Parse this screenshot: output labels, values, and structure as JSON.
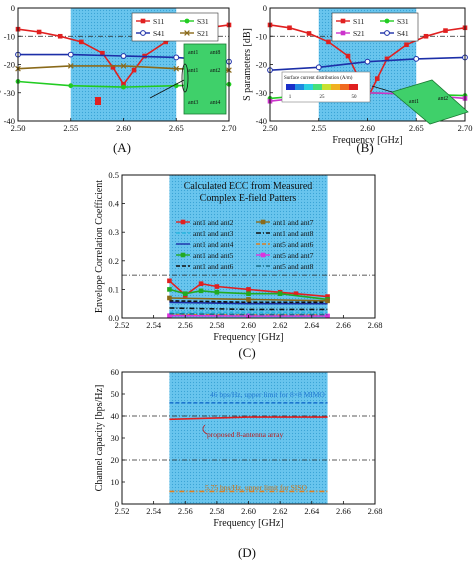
{
  "chart_data": [
    {
      "panel": "A",
      "type": "line",
      "ylabel": "S parameters [dB]",
      "xlim": [
        2.5,
        2.7
      ],
      "ylim": [
        -40,
        0
      ],
      "xticks": [
        "2.50",
        "2.55",
        "2.60",
        "2.65",
        "2.70"
      ],
      "yticks": [
        "0",
        "-10",
        "-20",
        "-30",
        "-40"
      ],
      "highlight_band": [
        2.55,
        2.65
      ],
      "reference_line": -10,
      "series": [
        {
          "name": "S11",
          "color": "#e02020",
          "marker": "square",
          "x": [
            2.5,
            2.52,
            2.54,
            2.56,
            2.58,
            2.59,
            2.6,
            2.61,
            2.62,
            2.64,
            2.66,
            2.68,
            2.7
          ],
          "values": [
            -7.5,
            -8.5,
            -10,
            -12,
            -16,
            -21,
            -27,
            -22,
            -17,
            -12,
            -9,
            -7,
            -6
          ]
        },
        {
          "name": "S31",
          "color": "#22cc22",
          "marker": "circle",
          "x": [
            2.5,
            2.55,
            2.6,
            2.65,
            2.7
          ],
          "values": [
            -26,
            -27.5,
            -28,
            -27.5,
            -27
          ]
        },
        {
          "name": "S41",
          "color": "#1c2fa8",
          "marker": "circle-open",
          "x": [
            2.5,
            2.55,
            2.6,
            2.65,
            2.7
          ],
          "values": [
            -16.5,
            -16.5,
            -17,
            -17.5,
            -19
          ]
        },
        {
          "name": "S21",
          "color": "#8a6a1a",
          "marker": "x",
          "x": [
            2.5,
            2.55,
            2.6,
            2.65,
            2.7
          ],
          "values": [
            -21.5,
            -20.5,
            -20.5,
            -21.5,
            -22
          ]
        }
      ],
      "inset_labels": [
        "ant1",
        "ant2",
        "ant3",
        "ant4",
        "ant1",
        "ant8"
      ]
    },
    {
      "panel": "B",
      "type": "line",
      "xlabel": "Frequency [GHz]",
      "ylabel": "S parameters [dB]",
      "xlim": [
        2.5,
        2.7
      ],
      "ylim": [
        -40,
        0
      ],
      "xticks": [
        "2.50",
        "2.55",
        "2.60",
        "2.65",
        "2.70"
      ],
      "yticks": [
        "0",
        "-10",
        "-20",
        "-30",
        "-40"
      ],
      "highlight_band": [
        2.55,
        2.65
      ],
      "reference_line": -10,
      "series": [
        {
          "name": "S11",
          "color": "#e02020",
          "marker": "square",
          "x": [
            2.5,
            2.52,
            2.54,
            2.56,
            2.58,
            2.59,
            2.6,
            2.61,
            2.62,
            2.64,
            2.66,
            2.68,
            2.7
          ],
          "values": [
            -6,
            -7,
            -9,
            -12,
            -17,
            -24,
            -32,
            -25,
            -18,
            -13,
            -10,
            -8,
            -7
          ]
        },
        {
          "name": "S31",
          "color": "#22cc22",
          "marker": "circle",
          "x": [
            2.5,
            2.55,
            2.6,
            2.65,
            2.7
          ],
          "values": [
            -32,
            -30.5,
            -30,
            -30.5,
            -31
          ]
        },
        {
          "name": "S21",
          "color": "#cc33cc",
          "marker": "square",
          "x": [
            2.5,
            2.55,
            2.6,
            2.65,
            2.7
          ],
          "values": [
            -33,
            -31,
            -30,
            -30.5,
            -32
          ]
        },
        {
          "name": "S41",
          "color": "#1c2fa8",
          "marker": "circle-open",
          "x": [
            2.5,
            2.55,
            2.6,
            2.65,
            2.7
          ],
          "values": [
            -22,
            -21,
            -19,
            -18,
            -17.5
          ]
        }
      ],
      "inset": {
        "title": "Surface current distribution (A/m)",
        "scale": [
          "1",
          "25",
          "50"
        ],
        "labels": [
          "ant1",
          "ant2"
        ]
      }
    },
    {
      "panel": "C",
      "type": "line",
      "xlabel": "Frequency [GHz]",
      "ylabel": "Envelope Correlation Coefficient",
      "title": [
        "Calculated ECC from Measured",
        "Complex E-field Patters"
      ],
      "xlim": [
        2.52,
        2.68
      ],
      "ylim": [
        0,
        0.5
      ],
      "xticks": [
        "2.52",
        "2.54",
        "2.56",
        "2.58",
        "2.60",
        "2.62",
        "2.64",
        "2.66",
        "2.68"
      ],
      "yticks": [
        "0.5",
        "0.4",
        "0.3",
        "0.2",
        "0.1",
        "0.0"
      ],
      "highlight_band": [
        2.55,
        2.65
      ],
      "reference_line": 0.15,
      "series": [
        {
          "name": "ant1 and ant2",
          "color": "#e02020",
          "style": "solid-marker",
          "x": [
            2.55,
            2.56,
            2.57,
            2.58,
            2.6,
            2.62,
            2.63,
            2.65
          ],
          "values": [
            0.13,
            0.08,
            0.12,
            0.11,
            0.1,
            0.09,
            0.085,
            0.075
          ]
        },
        {
          "name": "ant1 and ant3",
          "color": "#29b6e0",
          "style": "dash",
          "x": [
            2.55,
            2.6,
            2.65
          ],
          "values": [
            0.02,
            0.02,
            0.02
          ]
        },
        {
          "name": "ant1 and ant4",
          "color": "#1c2fa8",
          "style": "solid",
          "x": [
            2.55,
            2.6,
            2.65
          ],
          "values": [
            0.055,
            0.05,
            0.05
          ]
        },
        {
          "name": "ant1 and ant5",
          "color": "#22aa22",
          "style": "solid-marker",
          "x": [
            2.55,
            2.56,
            2.57,
            2.58,
            2.6,
            2.62,
            2.65
          ],
          "values": [
            0.1,
            0.085,
            0.095,
            0.09,
            0.085,
            0.085,
            0.065
          ]
        },
        {
          "name": "ant1 and ant6",
          "color": "#111111",
          "style": "dash",
          "x": [
            2.55,
            2.6,
            2.65
          ],
          "values": [
            0.06,
            0.055,
            0.055
          ]
        },
        {
          "name": "ant1 and ant7",
          "color": "#8a6a1a",
          "style": "solid-marker",
          "x": [
            2.55,
            2.6,
            2.65
          ],
          "values": [
            0.07,
            0.065,
            0.06
          ]
        },
        {
          "name": "ant1 and ant8",
          "color": "#111111",
          "style": "dashdot",
          "x": [
            2.55,
            2.6,
            2.65
          ],
          "values": [
            0.035,
            0.03,
            0.03
          ]
        },
        {
          "name": "ant5 and ant6",
          "color": "#e08020",
          "style": "dash",
          "x": [
            2.55,
            2.6,
            2.65
          ],
          "values": [
            0.012,
            0.01,
            0.01
          ]
        },
        {
          "name": "ant5 and ant7",
          "color": "#dd33dd",
          "style": "solid-marker",
          "x": [
            2.55,
            2.6,
            2.65
          ],
          "values": [
            0.008,
            0.007,
            0.007
          ]
        },
        {
          "name": "ant5 and ant8",
          "color": "#1c6f8a",
          "style": "dashdot",
          "x": [
            2.55,
            2.6,
            2.65
          ],
          "values": [
            0.015,
            0.012,
            0.012
          ]
        }
      ]
    },
    {
      "panel": "D",
      "type": "line",
      "xlabel": "Frequency [GHz]",
      "ylabel": "Channel capacity [bps/Hz]",
      "xlim": [
        2.52,
        2.68
      ],
      "ylim": [
        0,
        60
      ],
      "xticks": [
        "2.52",
        "2.54",
        "2.56",
        "2.58",
        "2.60",
        "2.62",
        "2.64",
        "2.66",
        "2.68"
      ],
      "yticks": [
        "60",
        "50",
        "40",
        "30",
        "20",
        "10",
        "0"
      ],
      "highlight_band": [
        2.55,
        2.65
      ],
      "reference_lines": [
        40,
        20
      ],
      "series": [
        {
          "name": "46 bps/Hz, upper limit for 8×8 MIMO",
          "color": "#1f77d0",
          "style": "dash",
          "x": [
            2.55,
            2.65
          ],
          "values": [
            46,
            46
          ]
        },
        {
          "name": "proposed 8-antenna array",
          "color": "#e02020",
          "style": "solid",
          "x": [
            2.55,
            2.6,
            2.65
          ],
          "values": [
            38.5,
            39.5,
            39.5
          ]
        },
        {
          "name": "5.75 bps/Hz, upper limit for SISO",
          "color": "#e08020",
          "style": "dashdot",
          "x": [
            2.55,
            2.65
          ],
          "values": [
            5.75,
            5.75
          ]
        }
      ]
    }
  ],
  "panel_labels": [
    "(A)",
    "(B)",
    "(C)",
    "(D)"
  ]
}
